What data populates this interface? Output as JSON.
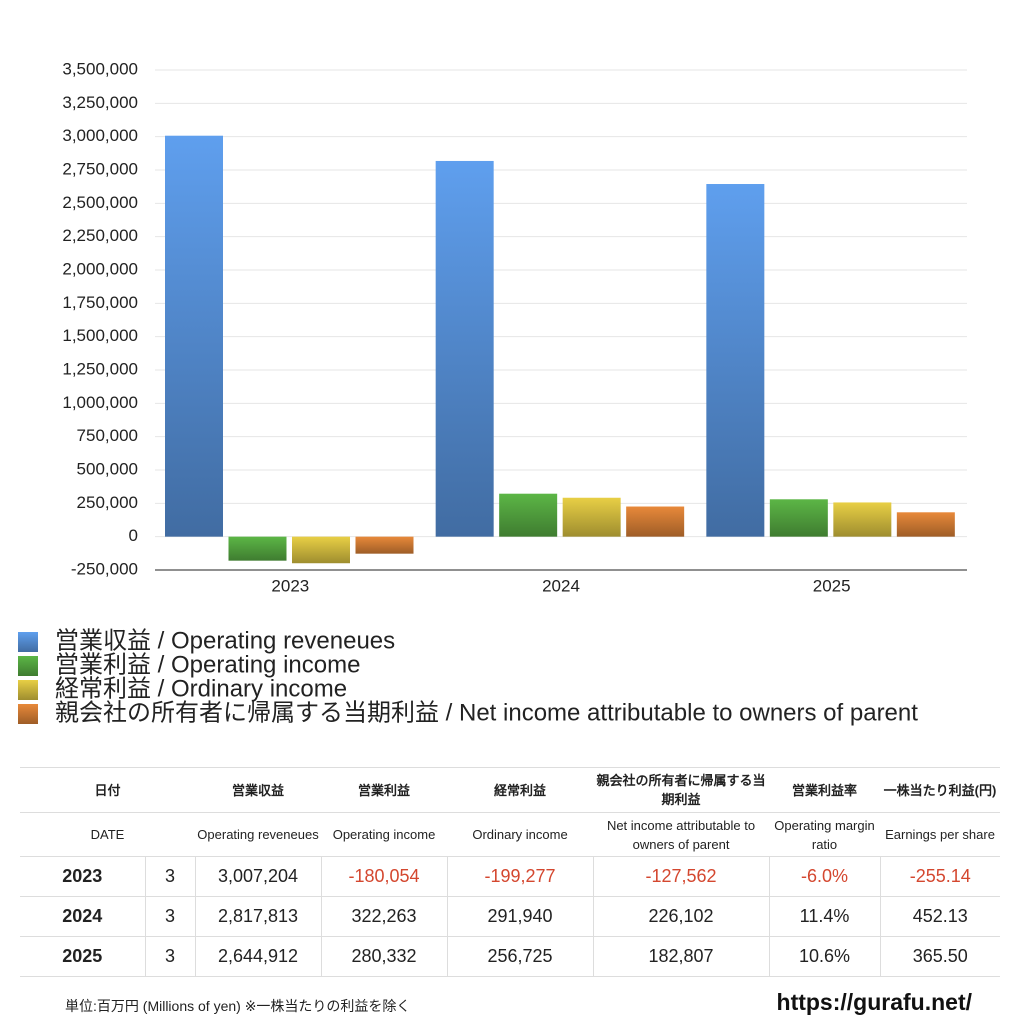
{
  "chart_data": {
    "type": "bar",
    "categories": [
      "2023",
      "2024",
      "2025"
    ],
    "series": [
      {
        "name": "営業収益 / Operating reveneues",
        "color": "#5f9fee",
        "values": [
          3007204,
          2817813,
          2644912
        ]
      },
      {
        "name": "営業利益 / Operating income",
        "color": "#5cb646",
        "values": [
          -180054,
          322263,
          280332
        ]
      },
      {
        "name": "経常利益 / Ordinary income",
        "color": "#e8cf45",
        "values": [
          -199277,
          291940,
          256725
        ]
      },
      {
        "name": "親会社の所有者に帰属する当期利益 / Net income attributable to owners of parent",
        "color": "#e8893a",
        "values": [
          -127562,
          226102,
          182807
        ]
      }
    ],
    "ylim": [
      -250000,
      3500000
    ],
    "yticks": [
      {
        "value": -250000,
        "label": "-250,000"
      },
      0,
      {
        "value": 250000,
        "label": "250,000"
      },
      {
        "value": 500000,
        "label": "500,000"
      },
      {
        "value": 750000,
        "label": "750,000"
      },
      {
        "value": 1000000,
        "label": "1,000,000"
      },
      {
        "value": 1250000,
        "label": "1,250,000"
      },
      {
        "value": 1500000,
        "label": "1,500,000"
      },
      {
        "value": 1750000,
        "label": "1,750,000"
      },
      {
        "value": 2000000,
        "label": "2,000,000"
      },
      {
        "value": 2250000,
        "label": "2,250,000"
      },
      {
        "value": 2500000,
        "label": "2,500,000"
      },
      {
        "value": 2750000,
        "label": "2,750,000"
      },
      {
        "value": 3000000,
        "label": "3,000,000"
      },
      {
        "value": 3250000,
        "label": "3,250,000"
      },
      {
        "value": 3500000,
        "label": "3,500,000"
      }
    ],
    "grid": true
  },
  "table": {
    "header_ja": [
      "日付",
      "営業収益",
      "営業利益",
      "経常利益",
      "親会社の所有者に帰属する当期利益",
      "営業利益率",
      "一株当たり利益(円)"
    ],
    "header_en": [
      "DATE",
      "Operating reveneues",
      "Operating income",
      "Ordinary income",
      "Net income attributable to owners of parent",
      "Operating margin ratio",
      "Earnings per share"
    ],
    "rows": [
      [
        "2023",
        "3",
        "3,007,204",
        "-180,054",
        "-199,277",
        "-127,562",
        "-6.0%",
        "-255.14"
      ],
      [
        "2024",
        "3",
        "2,817,813",
        "322,263",
        "291,940",
        "226,102",
        "11.4%",
        "452.13"
      ],
      [
        "2025",
        "3",
        "2,644,912",
        "280,332",
        "256,725",
        "182,807",
        "10.6%",
        "365.50"
      ]
    ]
  },
  "footer": {
    "note": "単位:百万円 (Millions of yen) ※一株当たりの利益を除く",
    "url": "https://gurafu.net/"
  }
}
